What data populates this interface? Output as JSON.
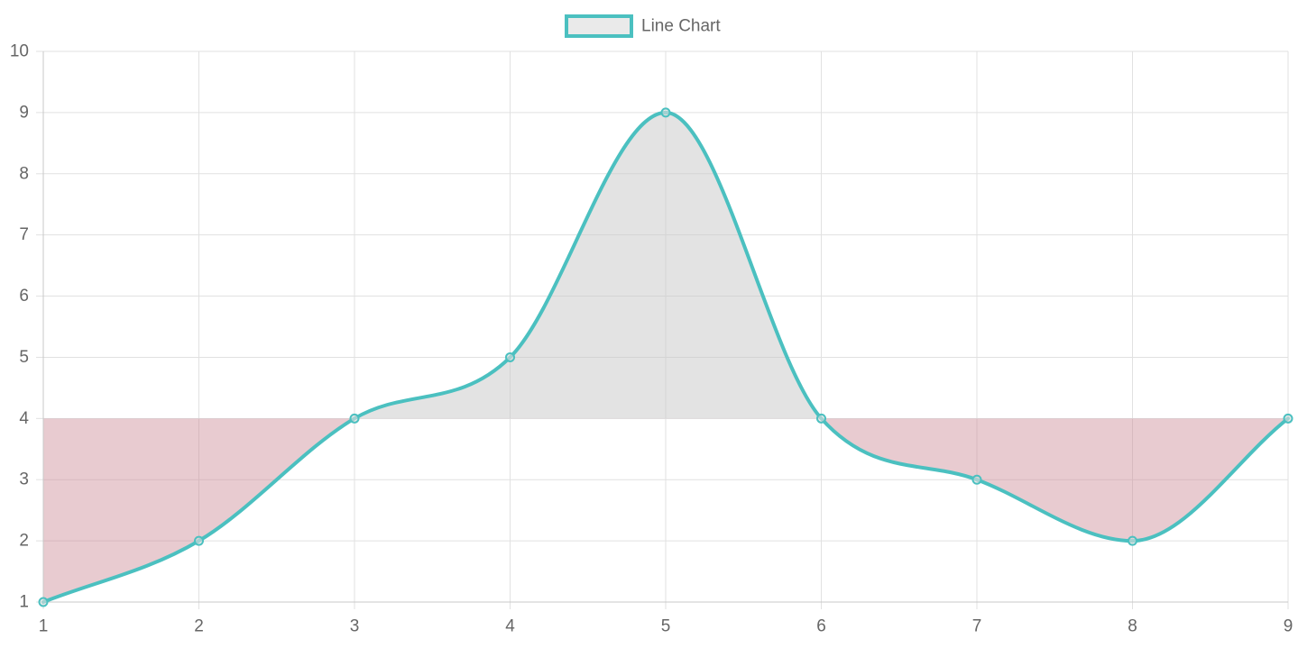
{
  "chart_data": {
    "type": "line",
    "x": [
      1,
      2,
      3,
      4,
      5,
      6,
      7,
      8,
      9
    ],
    "series": [
      {
        "name": "Line Chart",
        "values": [
          1,
          2,
          4,
          5,
          9,
          4,
          3,
          2,
          4
        ],
        "color": "#4bc0c0"
      }
    ],
    "fill_baseline": 4,
    "fill_above_color": "rgba(200,200,200,0.5)",
    "fill_below_color": "rgba(205,140,150,0.45)",
    "xlim": [
      1,
      9
    ],
    "ylim": [
      1,
      10
    ],
    "xticks": [
      1,
      2,
      3,
      4,
      5,
      6,
      7,
      8,
      9
    ],
    "yticks": [
      1,
      2,
      3,
      4,
      5,
      6,
      7,
      8,
      9,
      10
    ],
    "grid": true,
    "legend": {
      "position": "top-center",
      "label": "Line Chart"
    },
    "title": "",
    "xlabel": "",
    "ylabel": ""
  }
}
